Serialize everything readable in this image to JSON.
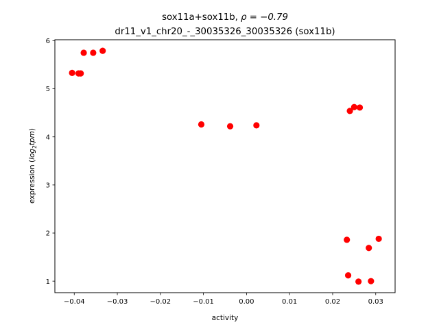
{
  "chart_data": {
    "type": "scatter",
    "title_line1_prefix": "sox11a+sox11b, ",
    "title_line1_rho": "ρ = −0.79",
    "title_line2": "dr11_v1_chr20_-_30035326_30035326 (sox11b)",
    "xlabel": "activity",
    "ylabel_prefix": "expression (",
    "ylabel_math": "log",
    "ylabel_sub": "2",
    "ylabel_math2": "tpm",
    "ylabel_suffix": ")",
    "xlim": [
      -0.0445,
      0.0345
    ],
    "ylim": [
      0.76,
      6.02
    ],
    "x_ticks": [
      -0.04,
      -0.03,
      -0.02,
      -0.01,
      0.0,
      0.01,
      0.02,
      0.03
    ],
    "x_tick_labels": [
      "−0.04",
      "−0.03",
      "−0.02",
      "−0.01",
      "0.00",
      "0.01",
      "0.02",
      "0.03"
    ],
    "y_ticks": [
      1,
      2,
      3,
      4,
      5,
      6
    ],
    "y_tick_labels": [
      "1",
      "2",
      "3",
      "4",
      "5",
      "6"
    ],
    "grid": false,
    "marker_color": "#ff0000",
    "points": [
      {
        "x": -0.0405,
        "y": 5.33
      },
      {
        "x": -0.039,
        "y": 5.32
      },
      {
        "x": -0.0385,
        "y": 5.32
      },
      {
        "x": -0.0378,
        "y": 5.75
      },
      {
        "x": -0.0356,
        "y": 5.75
      },
      {
        "x": -0.0334,
        "y": 5.79
      },
      {
        "x": -0.0105,
        "y": 4.26
      },
      {
        "x": -0.0038,
        "y": 4.22
      },
      {
        "x": 0.0023,
        "y": 4.24
      },
      {
        "x": 0.024,
        "y": 4.54
      },
      {
        "x": 0.025,
        "y": 4.62
      },
      {
        "x": 0.0263,
        "y": 4.61
      },
      {
        "x": 0.0233,
        "y": 1.86
      },
      {
        "x": 0.0307,
        "y": 1.88
      },
      {
        "x": 0.0284,
        "y": 1.69
      },
      {
        "x": 0.0236,
        "y": 1.12
      },
      {
        "x": 0.026,
        "y": 0.99
      },
      {
        "x": 0.0289,
        "y": 1.0
      }
    ]
  }
}
